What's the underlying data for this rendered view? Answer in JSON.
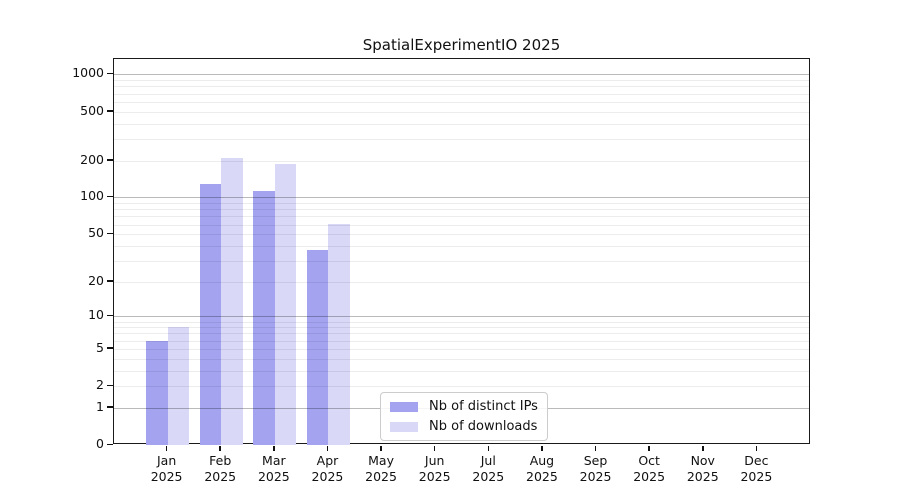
{
  "chart_data": {
    "type": "bar",
    "title": "SpatialExperimentIO 2025",
    "x_year": "2025",
    "categories": [
      "Jan",
      "Feb",
      "Mar",
      "Apr",
      "May",
      "Jun",
      "Jul",
      "Aug",
      "Sep",
      "Oct",
      "Nov",
      "Dec"
    ],
    "series": [
      {
        "name": "Nb of distinct IPs",
        "color": "#a3a3f0",
        "values": [
          6,
          130,
          112,
          37,
          null,
          null,
          null,
          null,
          null,
          null,
          null,
          null
        ]
      },
      {
        "name": "Nb of downloads",
        "color": "#d9d9f7",
        "values": [
          8,
          210,
          186,
          61,
          null,
          null,
          null,
          null,
          null,
          null,
          null,
          null
        ]
      }
    ],
    "y_axis": {
      "scale": "log1p",
      "ticks": [
        0,
        1,
        2,
        5,
        10,
        20,
        50,
        100,
        200,
        500,
        1000
      ],
      "major_grid_values": [
        1,
        10,
        100,
        1000
      ],
      "range": [
        0,
        1300
      ],
      "grid": true
    },
    "legend": {
      "position": "lower-center-inside"
    }
  }
}
